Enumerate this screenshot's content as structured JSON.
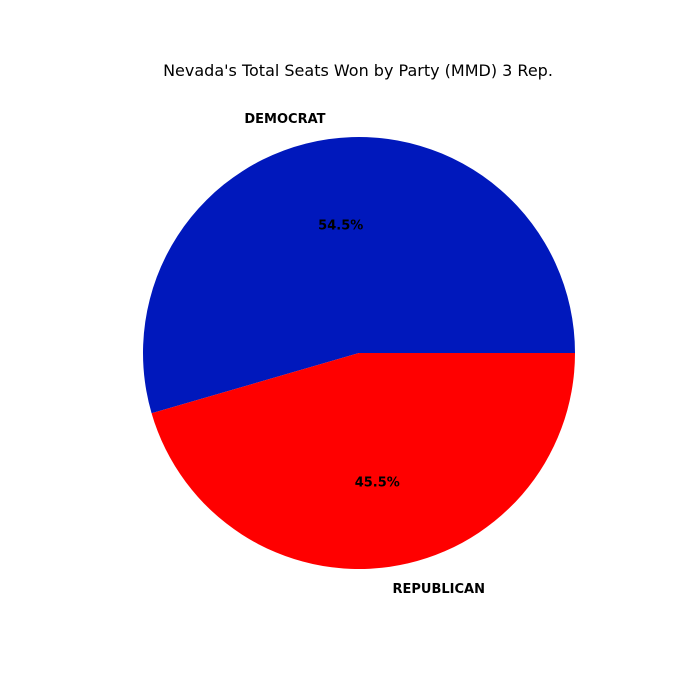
{
  "chart_data": {
    "type": "pie",
    "title": "Nevada's Total Seats Won by Party (MMD) 3 Rep.",
    "slices": [
      {
        "label": "DEMOCRAT",
        "value": 54.5,
        "pct_label": "54.5%",
        "color": "#0018BC"
      },
      {
        "label": "REPUBLICAN",
        "value": 45.5,
        "pct_label": "45.5%",
        "color": "#FF0000"
      }
    ],
    "start_angle_deg": 0,
    "direction": "counterclockwise"
  }
}
